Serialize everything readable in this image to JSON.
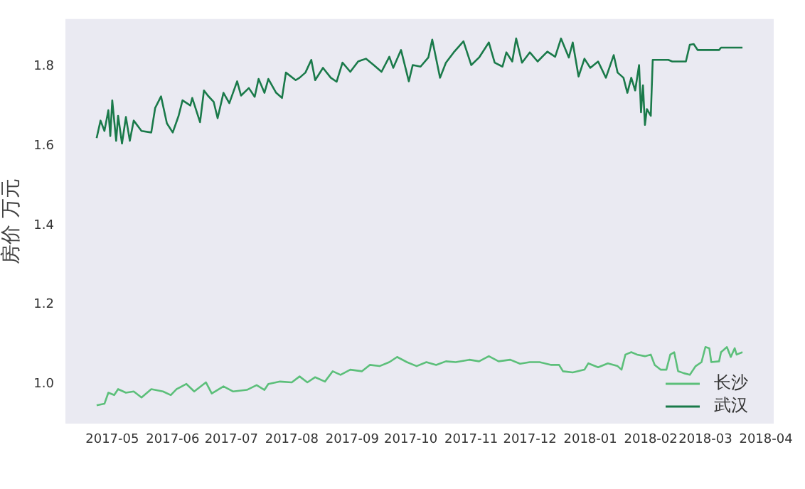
{
  "chart_data": {
    "type": "line",
    "ylabel": "房价 万元",
    "xlim": [
      "2017-04-07",
      "2018-04-05"
    ],
    "ylim": [
      0.9,
      1.92
    ],
    "xticks": [
      "2017-05",
      "2017-06",
      "2017-07",
      "2017-08",
      "2017-09",
      "2017-10",
      "2017-11",
      "2017-12",
      "2018-01",
      "2018-02",
      "2018-03",
      "2018-04"
    ],
    "yticks": [
      {
        "value": 1.0,
        "label": "1.0"
      },
      1.2,
      1.4,
      1.6,
      1.8
    ],
    "grid": false,
    "legend": "bottom right",
    "series": [
      {
        "name": "长沙",
        "color": "#5cbf7a",
        "x": [
          "2017-04-23",
          "2017-04-27",
          "2017-04-29",
          "2017-05-02",
          "2017-05-04",
          "2017-05-08",
          "2017-05-12",
          "2017-05-16",
          "2017-05-21",
          "2017-05-27",
          "2017-05-31",
          "2017-06-03",
          "2017-06-08",
          "2017-06-12",
          "2017-06-18",
          "2017-06-21",
          "2017-06-27",
          "2017-07-02",
          "2017-07-09",
          "2017-07-14",
          "2017-07-18",
          "2017-07-20",
          "2017-07-26",
          "2017-08-01",
          "2017-08-05",
          "2017-08-09",
          "2017-08-13",
          "2017-08-18",
          "2017-08-22",
          "2017-08-26",
          "2017-08-31",
          "2017-09-06",
          "2017-09-10",
          "2017-09-15",
          "2017-09-20",
          "2017-09-24",
          "2017-09-29",
          "2017-10-04",
          "2017-10-09",
          "2017-10-14",
          "2017-10-19",
          "2017-10-24",
          "2017-10-31",
          "2017-11-05",
          "2017-11-10",
          "2017-11-15",
          "2017-11-21",
          "2017-11-26",
          "2017-12-01",
          "2017-12-06",
          "2017-12-12",
          "2017-12-16",
          "2017-12-18",
          "2017-12-23",
          "2017-12-29",
          "2017-12-31",
          "2018-01-05",
          "2018-01-10",
          "2018-01-15",
          "2018-01-17",
          "2018-01-19",
          "2018-01-22",
          "2018-01-25",
          "2018-01-29",
          "2018-02-01",
          "2018-02-03",
          "2018-02-06",
          "2018-02-09",
          "2018-02-11",
          "2018-02-13",
          "2018-02-15",
          "2018-02-18",
          "2018-02-21",
          "2018-02-24",
          "2018-02-27",
          "2018-03-01",
          "2018-03-03",
          "2018-03-04",
          "2018-03-08",
          "2018-03-09",
          "2018-03-12",
          "2018-03-14",
          "2018-03-16",
          "2018-03-17",
          "2018-03-20"
        ],
        "values": [
          0.946,
          0.95,
          0.978,
          0.972,
          0.987,
          0.978,
          0.981,
          0.966,
          0.987,
          0.981,
          0.972,
          0.987,
          1.0,
          0.981,
          1.004,
          0.976,
          0.994,
          0.981,
          0.985,
          0.997,
          0.985,
          1.0,
          1.006,
          1.004,
          1.019,
          1.004,
          1.017,
          1.006,
          1.032,
          1.023,
          1.036,
          1.032,
          1.048,
          1.045,
          1.055,
          1.068,
          1.055,
          1.045,
          1.055,
          1.048,
          1.057,
          1.055,
          1.061,
          1.057,
          1.07,
          1.057,
          1.061,
          1.051,
          1.055,
          1.055,
          1.048,
          1.048,
          1.032,
          1.029,
          1.036,
          1.052,
          1.042,
          1.052,
          1.045,
          1.036,
          1.074,
          1.08,
          1.074,
          1.07,
          1.074,
          1.048,
          1.036,
          1.036,
          1.074,
          1.08,
          1.032,
          1.027,
          1.023,
          1.045,
          1.055,
          1.093,
          1.09,
          1.055,
          1.057,
          1.08,
          1.093,
          1.068,
          1.09,
          1.074,
          1.08
        ]
      },
      {
        "name": "武汉",
        "color": "#1a7a4a",
        "x": [
          "2017-04-23",
          "2017-04-25",
          "2017-04-27",
          "2017-04-29",
          "2017-04-30",
          "2017-05-01",
          "2017-05-03",
          "2017-05-04",
          "2017-05-06",
          "2017-05-08",
          "2017-05-10",
          "2017-05-12",
          "2017-05-16",
          "2017-05-21",
          "2017-05-23",
          "2017-05-26",
          "2017-05-29",
          "2017-06-01",
          "2017-06-04",
          "2017-06-06",
          "2017-06-10",
          "2017-06-11",
          "2017-06-15",
          "2017-06-17",
          "2017-06-19",
          "2017-06-22",
          "2017-06-24",
          "2017-06-27",
          "2017-06-30",
          "2017-07-04",
          "2017-07-06",
          "2017-07-10",
          "2017-07-13",
          "2017-07-15",
          "2017-07-18",
          "2017-07-20",
          "2017-07-24",
          "2017-07-27",
          "2017-07-29",
          "2017-08-03",
          "2017-08-05",
          "2017-08-08",
          "2017-08-11",
          "2017-08-13",
          "2017-08-17",
          "2017-08-21",
          "2017-08-24",
          "2017-08-27",
          "2017-08-31",
          "2017-09-04",
          "2017-09-08",
          "2017-09-12",
          "2017-09-16",
          "2017-09-20",
          "2017-09-22",
          "2017-09-26",
          "2017-09-30",
          "2017-10-02",
          "2017-10-06",
          "2017-10-10",
          "2017-10-12",
          "2017-10-16",
          "2017-10-19",
          "2017-10-23",
          "2017-10-28",
          "2017-11-01",
          "2017-11-05",
          "2017-11-10",
          "2017-11-13",
          "2017-11-17",
          "2017-11-19",
          "2017-11-22",
          "2017-11-24",
          "2017-11-27",
          "2017-12-01",
          "2017-12-05",
          "2017-12-10",
          "2017-12-14",
          "2017-12-17",
          "2017-12-21",
          "2017-12-23",
          "2017-12-26",
          "2017-12-29",
          "2018-01-01",
          "2018-01-05",
          "2018-01-09",
          "2018-01-13",
          "2018-01-15",
          "2018-01-18",
          "2018-01-20",
          "2018-01-22",
          "2018-01-24",
          "2018-01-26",
          "2018-01-27",
          "2018-01-28",
          "2018-01-29",
          "2018-01-30",
          "2018-02-01",
          "2018-02-02",
          "2018-02-10",
          "2018-02-12",
          "2018-02-19",
          "2018-02-21",
          "2018-02-23",
          "2018-02-25",
          "2018-03-08",
          "2018-03-09",
          "2018-03-20"
        ],
        "values": [
          1.62,
          1.664,
          1.638,
          1.69,
          1.625,
          1.715,
          1.613,
          1.676,
          1.606,
          1.673,
          1.613,
          1.664,
          1.638,
          1.634,
          1.696,
          1.725,
          1.657,
          1.634,
          1.676,
          1.715,
          1.702,
          1.721,
          1.66,
          1.74,
          1.727,
          1.711,
          1.67,
          1.734,
          1.708,
          1.763,
          1.727,
          1.746,
          1.724,
          1.769,
          1.734,
          1.769,
          1.734,
          1.721,
          1.785,
          1.766,
          1.772,
          1.785,
          1.817,
          1.766,
          1.797,
          1.772,
          1.762,
          1.81,
          1.787,
          1.813,
          1.82,
          1.804,
          1.787,
          1.825,
          1.797,
          1.842,
          1.763,
          1.804,
          1.8,
          1.823,
          1.868,
          1.772,
          1.81,
          1.836,
          1.864,
          1.804,
          1.823,
          1.861,
          1.81,
          1.8,
          1.836,
          1.813,
          1.871,
          1.81,
          1.836,
          1.813,
          1.838,
          1.825,
          1.871,
          1.823,
          1.861,
          1.775,
          1.82,
          1.797,
          1.813,
          1.772,
          1.829,
          1.785,
          1.772,
          1.734,
          1.772,
          1.74,
          1.804,
          1.685,
          1.753,
          1.653,
          1.693,
          1.676,
          1.817,
          1.817,
          1.813,
          1.813,
          1.855,
          1.857,
          1.842,
          1.842,
          1.848,
          1.848
        ]
      }
    ]
  }
}
